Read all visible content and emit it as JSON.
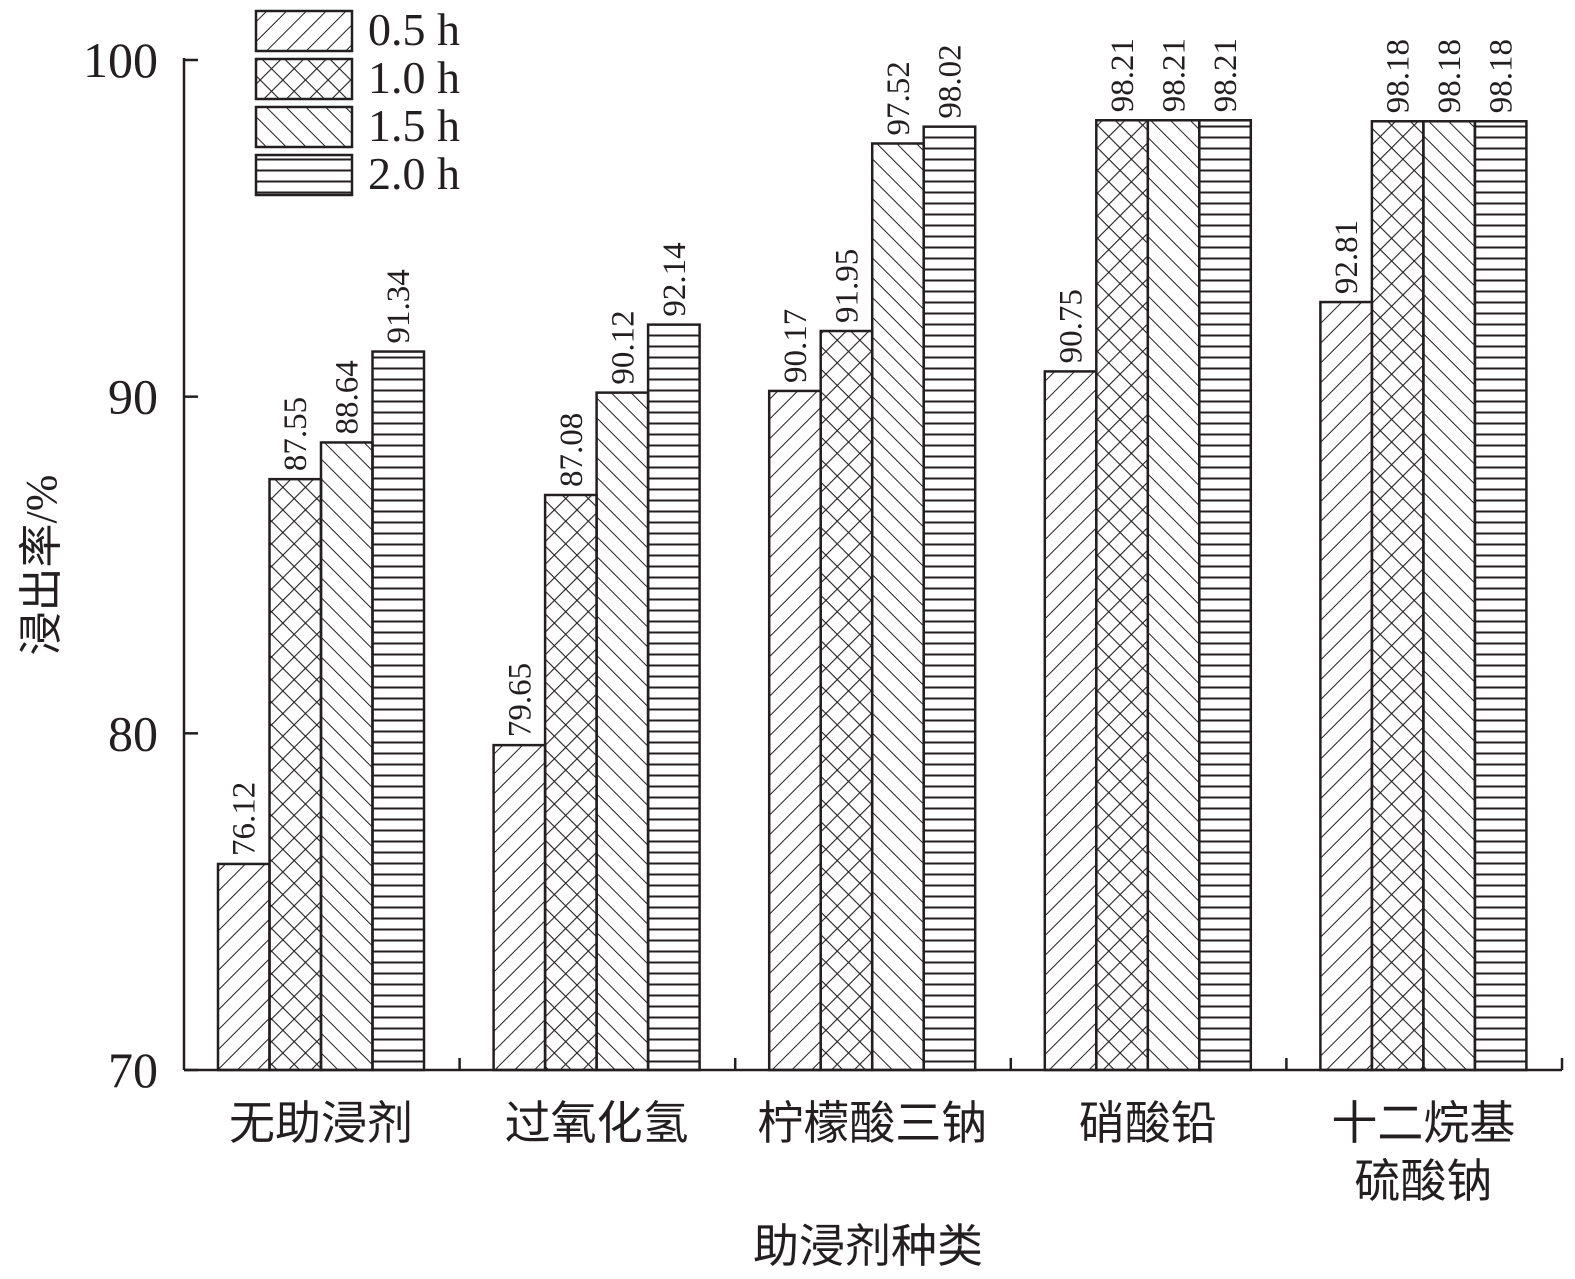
{
  "chart_data": {
    "type": "bar",
    "title": "",
    "xlabel": "助浸剂种类",
    "ylabel": "浸出率/%",
    "ylim": [
      70,
      100
    ],
    "yticks": [
      70,
      80,
      90,
      100
    ],
    "categories": [
      [
        "无助浸剂"
      ],
      [
        "过氧化氢"
      ],
      [
        "柠檬酸三钠"
      ],
      [
        "硝酸铅"
      ],
      [
        "十二烷基",
        "硫酸钠"
      ]
    ],
    "series": [
      {
        "name": "0.5 h",
        "pattern": "diag-right",
        "values": [
          76.12,
          79.65,
          90.17,
          90.75,
          92.81
        ],
        "labels": [
          "76.12",
          "79.65",
          "90.17",
          "90.75",
          "92.81"
        ]
      },
      {
        "name": "1.0 h",
        "pattern": "crosshatch",
        "values": [
          87.55,
          87.08,
          91.95,
          98.21,
          98.18
        ],
        "labels": [
          "87.55",
          "87.08",
          "91.95",
          "98.21",
          "98.18"
        ]
      },
      {
        "name": "1.5 h",
        "pattern": "diag-left",
        "values": [
          88.64,
          90.12,
          97.52,
          98.21,
          98.18
        ],
        "labels": [
          "88.64",
          "90.12",
          "97.52",
          "98.21",
          "98.18"
        ]
      },
      {
        "name": "2.0 h",
        "pattern": "horizontal",
        "values": [
          91.34,
          92.14,
          98.02,
          98.21,
          98.18
        ],
        "labels": [
          "91.34",
          "92.14",
          "98.02",
          "98.21",
          "98.18"
        ]
      }
    ],
    "legend": "top-left",
    "grid": false,
    "colors": {
      "stroke": "#231f20",
      "background": "#ffffff"
    }
  }
}
